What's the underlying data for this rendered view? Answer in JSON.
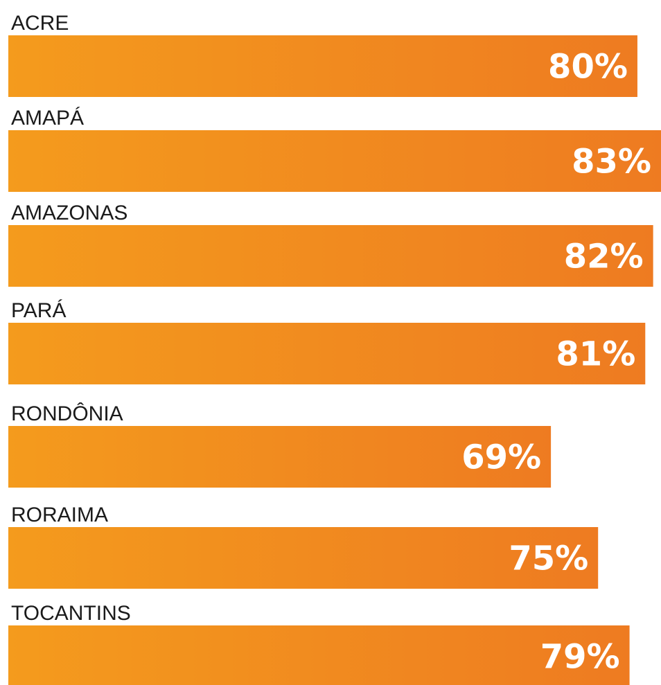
{
  "chart_data": {
    "type": "bar",
    "orientation": "horizontal",
    "categories": [
      "ACRE",
      "AMAPÁ",
      "AMAZONAS",
      "PARÁ",
      "RONDÔNIA",
      "RORAIMA",
      "TOCANTINS"
    ],
    "values": [
      80,
      83,
      82,
      81,
      69,
      75,
      79
    ],
    "value_labels": [
      "80%",
      "83%",
      "82%",
      "81%",
      "69%",
      "75%",
      "79%"
    ],
    "color": [
      "#f49b1d",
      "#ee7b21"
    ],
    "xlim": [
      0,
      83
    ]
  }
}
